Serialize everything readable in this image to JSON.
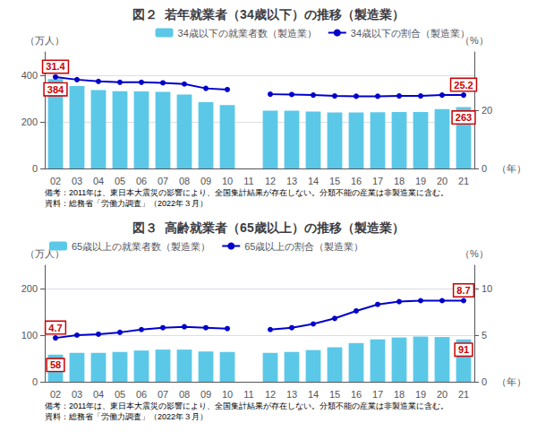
{
  "chart_data": [
    {
      "type": "bar",
      "title": "図２  若年就業者（34歳以下）の推移（製造業）",
      "categories": [
        "02",
        "03",
        "04",
        "05",
        "06",
        "07",
        "08",
        "09",
        "10",
        "11",
        "12",
        "13",
        "14",
        "15",
        "16",
        "17",
        "18",
        "19",
        "20",
        "21"
      ],
      "series": [
        {
          "name": "34歳以下の就業者数（製造業）",
          "type": "bar",
          "color": "#5BC8E8",
          "values": [
            384,
            354,
            337,
            332,
            331,
            329,
            317,
            285,
            272,
            null,
            248,
            248,
            244,
            240,
            240,
            241,
            242,
            242,
            255,
            263
          ]
        },
        {
          "name": "34歳以下の割合（製造業）",
          "type": "line",
          "color": "#0000CC",
          "marker": "circle",
          "axis": "y2",
          "values": [
            31.4,
            30.5,
            29.9,
            29.6,
            29.6,
            29.4,
            29.0,
            27.5,
            27.1,
            null,
            25.5,
            25.4,
            25.2,
            24.9,
            24.8,
            24.8,
            24.9,
            24.9,
            25.2,
            25.2
          ]
        }
      ],
      "x_label": "（年）",
      "y_label": "（万人）",
      "y2_label": "（%）",
      "ylim": [
        0,
        500
      ],
      "yticks": [
        0,
        200,
        400
      ],
      "y2lim": [
        0,
        40
      ],
      "y2ticks": [
        0,
        20
      ],
      "grid": true,
      "legend": "upper right",
      "annotations": [
        {
          "text": "384",
          "x": "02",
          "y": 384,
          "axis": "y",
          "color": "#CC0000"
        },
        {
          "text": "263",
          "x": "21",
          "y": 263,
          "axis": "y",
          "color": "#CC0000"
        },
        {
          "text": "31.4",
          "x": "02",
          "y": 31.4,
          "axis": "y2",
          "color": "#CC0000"
        },
        {
          "text": "25.2",
          "x": "21",
          "y": 25.2,
          "axis": "y2",
          "color": "#CC0000"
        }
      ],
      "notes": [
        "備考：2011年は、東日本大震災の影響により、全国集計結果が存在しない。分類不能の産業は非製造業に含む。",
        "資料：総務省「労働力調査」（2022年３月）"
      ]
    },
    {
      "type": "bar",
      "title": "図３  高齢就業者（65歳以上）の推移（製造業）",
      "categories": [
        "02",
        "03",
        "04",
        "05",
        "06",
        "07",
        "08",
        "09",
        "10",
        "11",
        "12",
        "13",
        "14",
        "15",
        "16",
        "17",
        "18",
        "19",
        "20",
        "21"
      ],
      "series": [
        {
          "name": "65歳以上の就業者数（製造業）",
          "type": "bar",
          "color": "#5BC8E8",
          "values": [
            58,
            62,
            62,
            64,
            67,
            69,
            69,
            65,
            64,
            null,
            62,
            64,
            68,
            74,
            83,
            91,
            95,
            97,
            96,
            91
          ]
        },
        {
          "name": "65歳以上の割合（製造業）",
          "type": "line",
          "color": "#0000CC",
          "marker": "circle",
          "axis": "y2",
          "values": [
            4.7,
            5.0,
            5.1,
            5.3,
            5.6,
            5.8,
            5.9,
            5.8,
            5.7,
            null,
            5.6,
            5.8,
            6.2,
            6.8,
            7.6,
            8.3,
            8.6,
            8.7,
            8.7,
            8.7
          ]
        }
      ],
      "x_label": "（年）",
      "y_label": "（万人）",
      "y2_label": "（%）",
      "ylim": [
        0,
        250
      ],
      "yticks": [
        0,
        100,
        200
      ],
      "y2lim": [
        0,
        12.5
      ],
      "y2ticks": [
        0,
        5,
        10
      ],
      "grid": true,
      "legend": "upper left",
      "annotations": [
        {
          "text": "58",
          "x": "02",
          "y": 58,
          "axis": "y",
          "color": "#CC0000"
        },
        {
          "text": "91",
          "x": "21",
          "y": 91,
          "axis": "y",
          "color": "#CC0000"
        },
        {
          "text": "4.7",
          "x": "02",
          "y": 4.7,
          "axis": "y2",
          "color": "#CC0000"
        },
        {
          "text": "8.7",
          "x": "21",
          "y": 8.7,
          "axis": "y2",
          "color": "#CC0000"
        }
      ],
      "notes": [
        "備考：2011年は、東日本大震災の影響により、全国集計結果が存在しない。分類不能の産業は非製造業に含む。",
        "資料：総務省「労働力調査」（2022年３月）"
      ]
    }
  ]
}
